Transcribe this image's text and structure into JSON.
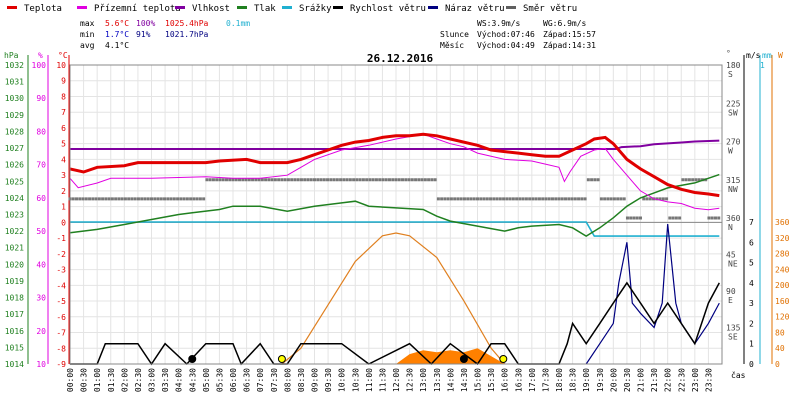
{
  "chart_data": [
    {
      "type": "line",
      "title": "26.12.2016",
      "legend": [
        {
          "name": "Teplota",
          "color": "#e00000"
        },
        {
          "name": "Přízemní teplota",
          "color": "#e000e0"
        },
        {
          "name": "Vlhkost",
          "color": "#8000a0"
        },
        {
          "name": "Tlak",
          "color": "#208020"
        },
        {
          "name": "Srážky",
          "color": "#20b0d0"
        },
        {
          "name": "Rychlost větru",
          "color": "#000000"
        },
        {
          "name": "Náraz větru",
          "color": "#000080"
        },
        {
          "name": "Směr větru",
          "color": "#606060"
        }
      ],
      "stats": {
        "max_label": "max",
        "max_temp": "5.6°C",
        "max_hum": "100%",
        "max_press": "1025.4hPa",
        "max_rain": "0.1mm",
        "min_label": "min",
        "min_temp": "1.7°C",
        "min_hum": "91%",
        "min_press": "1021.7hPa",
        "avg_label": "avg",
        "avg_temp": "4.1°C"
      },
      "wind_info": {
        "ws": "WS:3.9m/s",
        "wg": "WG:6.9m/s"
      },
      "sun": {
        "label": "Slunce",
        "rise": "Východ:07:46",
        "set": "Západ:15:57"
      },
      "moon": {
        "label": "Měsíc",
        "rise": "Východ:04:49",
        "set": "Západ:14:31"
      },
      "axes": {
        "hpa_label": "hPa",
        "pct_label": "%",
        "c_label": "°C",
        "deg_label": "°",
        "ms_label": "m/s",
        "mm_label": "mm",
        "w_label": "W",
        "x_label": "čas",
        "hpa_ticks": [
          "1014",
          "1015",
          "1016",
          "1017",
          "1018",
          "1019",
          "1020",
          "1021",
          "1022",
          "1023",
          "1024",
          "1025",
          "1026",
          "1027",
          "1028",
          "1029",
          "1030",
          "1031",
          "1032"
        ],
        "pct_ticks": [
          "10",
          "20",
          "30",
          "40",
          "50",
          "60",
          "70",
          "80",
          "90",
          "100"
        ],
        "c_ticks": [
          "-9",
          "-8",
          "-7",
          "-6",
          "-5",
          "-4",
          "-3",
          "-2",
          "-1",
          "0",
          "1",
          "2",
          "3",
          "4",
          "5",
          "6",
          "7",
          "8",
          "9",
          "10"
        ],
        "dir_ticks": [
          {
            "deg": "360",
            "dir": "N"
          },
          {
            "deg": "315",
            "dir": "NW"
          },
          {
            "deg": "270",
            "dir": "W"
          },
          {
            "deg": "225",
            "dir": "SW"
          },
          {
            "deg": "180",
            "dir": "S"
          },
          {
            "deg": "135",
            "dir": "SE"
          },
          {
            "deg": "90",
            "dir": "E"
          },
          {
            "deg": "45",
            "dir": "NE"
          }
        ],
        "ms_ticks": [
          "0",
          "1",
          "2",
          "3",
          "4",
          "5",
          "6",
          "7"
        ],
        "ms_top": "1",
        "w_ticks": [
          "0",
          "40",
          "80",
          "120",
          "160",
          "200",
          "240",
          "280",
          "320",
          "360"
        ],
        "x_ticks": [
          "00:00",
          "00:30",
          "01:00",
          "01:30",
          "02:00",
          "02:30",
          "03:00",
          "03:30",
          "04:00",
          "04:30",
          "05:00",
          "05:30",
          "06:00",
          "06:30",
          "07:00",
          "07:30",
          "08:00",
          "08:30",
          "09:00",
          "09:30",
          "10:00",
          "10:30",
          "11:00",
          "11:30",
          "12:00",
          "12:30",
          "13:00",
          "13:30",
          "14:00",
          "14:30",
          "15:00",
          "15:30",
          "16:00",
          "16:30",
          "17:00",
          "17:30",
          "18:00",
          "18:30",
          "19:00",
          "19:30",
          "20:00",
          "20:30",
          "21:00",
          "21:30",
          "22:00",
          "22:30",
          "23:00",
          "23:30"
        ]
      },
      "series": {
        "temperature": [
          [
            0,
            3.4
          ],
          [
            0.5,
            3.2
          ],
          [
            1,
            3.5
          ],
          [
            2,
            3.6
          ],
          [
            2.5,
            3.8
          ],
          [
            4,
            3.8
          ],
          [
            5,
            3.8
          ],
          [
            5.5,
            3.9
          ],
          [
            6.5,
            4.0
          ],
          [
            7,
            3.8
          ],
          [
            8,
            3.8
          ],
          [
            8.5,
            4.0
          ],
          [
            9,
            4.3
          ],
          [
            9.5,
            4.6
          ],
          [
            10,
            4.9
          ],
          [
            10.5,
            5.1
          ],
          [
            11,
            5.2
          ],
          [
            11.5,
            5.4
          ],
          [
            12,
            5.5
          ],
          [
            12.5,
            5.5
          ],
          [
            13,
            5.6
          ],
          [
            13.5,
            5.5
          ],
          [
            14,
            5.3
          ],
          [
            15,
            4.9
          ],
          [
            15.5,
            4.6
          ],
          [
            16,
            4.5
          ],
          [
            16.5,
            4.4
          ],
          [
            17,
            4.3
          ],
          [
            17.5,
            4.2
          ],
          [
            18,
            4.2
          ],
          [
            18.5,
            4.6
          ],
          [
            19,
            5.0
          ],
          [
            19.3,
            5.3
          ],
          [
            19.7,
            5.4
          ],
          [
            20,
            5.0
          ],
          [
            20.5,
            4.0
          ],
          [
            21,
            3.4
          ],
          [
            21.5,
            2.9
          ],
          [
            22,
            2.4
          ],
          [
            22.5,
            2.1
          ],
          [
            23,
            1.9
          ],
          [
            23.5,
            1.8
          ],
          [
            23.9,
            1.7
          ]
        ],
        "ground_temp": [
          [
            0,
            2.8
          ],
          [
            0.3,
            2.2
          ],
          [
            1,
            2.5
          ],
          [
            1.5,
            2.8
          ],
          [
            3,
            2.8
          ],
          [
            5,
            2.9
          ],
          [
            6,
            2.8
          ],
          [
            7,
            2.8
          ],
          [
            8,
            3.0
          ],
          [
            8.5,
            3.5
          ],
          [
            9,
            4.0
          ],
          [
            10,
            4.6
          ],
          [
            11,
            4.9
          ],
          [
            12,
            5.3
          ],
          [
            13,
            5.6
          ],
          [
            13.5,
            5.3
          ],
          [
            14,
            5.0
          ],
          [
            14.5,
            4.8
          ],
          [
            15,
            4.4
          ],
          [
            16,
            4.0
          ],
          [
            17,
            3.9
          ],
          [
            17.5,
            3.7
          ],
          [
            18,
            3.5
          ],
          [
            18.2,
            2.6
          ],
          [
            18.4,
            3.2
          ],
          [
            18.8,
            4.2
          ],
          [
            19.3,
            4.6
          ],
          [
            19.7,
            4.7
          ],
          [
            20,
            4.0
          ],
          [
            20.5,
            3.0
          ],
          [
            21,
            2.0
          ],
          [
            21.5,
            1.5
          ],
          [
            22,
            1.3
          ],
          [
            22.5,
            1.2
          ],
          [
            23,
            0.9
          ],
          [
            23.5,
            0.8
          ],
          [
            23.9,
            0.9
          ]
        ],
        "humidity": [
          [
            0,
            100
          ],
          [
            20.1,
            100
          ],
          [
            20.3,
            98
          ],
          [
            21,
            97
          ],
          [
            21.5,
            95
          ],
          [
            22,
            94
          ],
          [
            22.5,
            93
          ],
          [
            23,
            92
          ],
          [
            23.9,
            91
          ]
        ],
        "pressure": [
          [
            0,
            1021.9
          ],
          [
            1,
            1022.1
          ],
          [
            2,
            1022.4
          ],
          [
            3,
            1022.7
          ],
          [
            4,
            1023.0
          ],
          [
            4.5,
            1023.1
          ],
          [
            5.5,
            1023.3
          ],
          [
            6,
            1023.5
          ],
          [
            7,
            1023.5
          ],
          [
            8,
            1023.2
          ],
          [
            9,
            1023.5
          ],
          [
            10,
            1023.7
          ],
          [
            10.5,
            1023.8
          ],
          [
            11,
            1023.5
          ],
          [
            12,
            1023.4
          ],
          [
            13,
            1023.3
          ],
          [
            13.5,
            1022.9
          ],
          [
            14,
            1022.6
          ],
          [
            15,
            1022.3
          ],
          [
            16,
            1022.0
          ],
          [
            16.5,
            1022.2
          ],
          [
            17,
            1022.3
          ],
          [
            18,
            1022.4
          ],
          [
            18.5,
            1022.2
          ],
          [
            19,
            1021.7
          ],
          [
            19.5,
            1022.2
          ],
          [
            20,
            1022.8
          ],
          [
            20.5,
            1023.5
          ],
          [
            21,
            1024.0
          ],
          [
            21.5,
            1024.3
          ],
          [
            22,
            1024.6
          ],
          [
            23,
            1024.9
          ],
          [
            23.9,
            1025.4
          ]
        ],
        "wind_speed": [
          [
            0,
            0
          ],
          [
            1,
            0
          ],
          [
            1.3,
            1
          ],
          [
            2.5,
            1
          ],
          [
            3,
            0
          ],
          [
            3.5,
            1
          ],
          [
            4.3,
            0
          ],
          [
            5,
            1
          ],
          [
            6,
            1
          ],
          [
            6.3,
            0
          ],
          [
            7,
            1
          ],
          [
            7.5,
            0
          ],
          [
            8,
            0
          ],
          [
            8.5,
            1
          ],
          [
            10,
            1
          ],
          [
            11,
            0
          ],
          [
            12.5,
            1
          ],
          [
            13.3,
            0
          ],
          [
            14,
            1
          ],
          [
            15,
            0
          ],
          [
            15.5,
            1
          ],
          [
            16,
            1
          ],
          [
            16.5,
            0
          ],
          [
            18,
            0
          ],
          [
            18.3,
            1
          ],
          [
            18.5,
            2
          ],
          [
            19,
            1
          ],
          [
            19.5,
            2
          ],
          [
            20,
            3
          ],
          [
            20.5,
            4
          ],
          [
            21,
            3
          ],
          [
            21.5,
            2
          ],
          [
            22,
            3
          ],
          [
            22.5,
            2
          ],
          [
            23,
            1
          ],
          [
            23.5,
            3
          ],
          [
            23.9,
            4
          ]
        ],
        "wind_gust": [
          [
            19,
            0
          ],
          [
            19.5,
            1
          ],
          [
            20,
            2
          ],
          [
            20.2,
            4
          ],
          [
            20.5,
            6
          ],
          [
            20.7,
            3
          ],
          [
            21,
            2.5
          ],
          [
            21.5,
            1.8
          ],
          [
            21.8,
            3
          ],
          [
            22,
            6.9
          ],
          [
            22.3,
            3
          ],
          [
            22.5,
            2
          ],
          [
            23,
            1
          ],
          [
            23.5,
            2
          ],
          [
            23.9,
            3
          ]
        ],
        "rain_mm": [
          [
            0,
            0
          ],
          [
            19,
            0
          ],
          [
            19.3,
            0.1
          ],
          [
            23.9,
            0.1
          ]
        ],
        "solar_w": [
          [
            7.8,
            0
          ],
          [
            8.5,
            40
          ],
          [
            9.5,
            150
          ],
          [
            10.5,
            260
          ],
          [
            11.5,
            325
          ],
          [
            12,
            332
          ],
          [
            12.5,
            325
          ],
          [
            13.5,
            270
          ],
          [
            14.5,
            160
          ],
          [
            15.5,
            40
          ],
          [
            16,
            0
          ]
        ],
        "solar_area_w": [
          [
            12,
            0
          ],
          [
            12.5,
            25
          ],
          [
            13,
            35
          ],
          [
            13.5,
            30
          ],
          [
            14,
            35
          ],
          [
            14.5,
            30
          ],
          [
            15,
            40
          ],
          [
            15.5,
            20
          ],
          [
            16,
            0
          ]
        ],
        "wind_dir_sample": [
          [
            0,
            315
          ],
          [
            5,
            315
          ],
          [
            5,
            270
          ],
          [
            10,
            270
          ],
          [
            12,
            270
          ],
          [
            13.5,
            315
          ],
          [
            17,
            315
          ],
          [
            19,
            270
          ],
          [
            19.5,
            315
          ],
          [
            20.5,
            360
          ],
          [
            21,
            315
          ],
          [
            22,
            360
          ],
          [
            22.5,
            270
          ],
          [
            23.5,
            360
          ]
        ]
      },
      "markers": [
        {
          "t": 4.5,
          "kind": "moonrise"
        },
        {
          "t": 7.8,
          "kind": "sunrise"
        },
        {
          "t": 14.5,
          "kind": "moonset"
        },
        {
          "t": 15.95,
          "kind": "sunset"
        }
      ],
      "ranges": {
        "c": [
          -9,
          10
        ],
        "pct": [
          10,
          100
        ],
        "hpa": [
          1014,
          1032
        ],
        "ms": [
          0,
          7
        ],
        "mm": [
          0,
          1
        ],
        "w": [
          0,
          360
        ],
        "deg": [
          0,
          360
        ]
      }
    }
  ]
}
